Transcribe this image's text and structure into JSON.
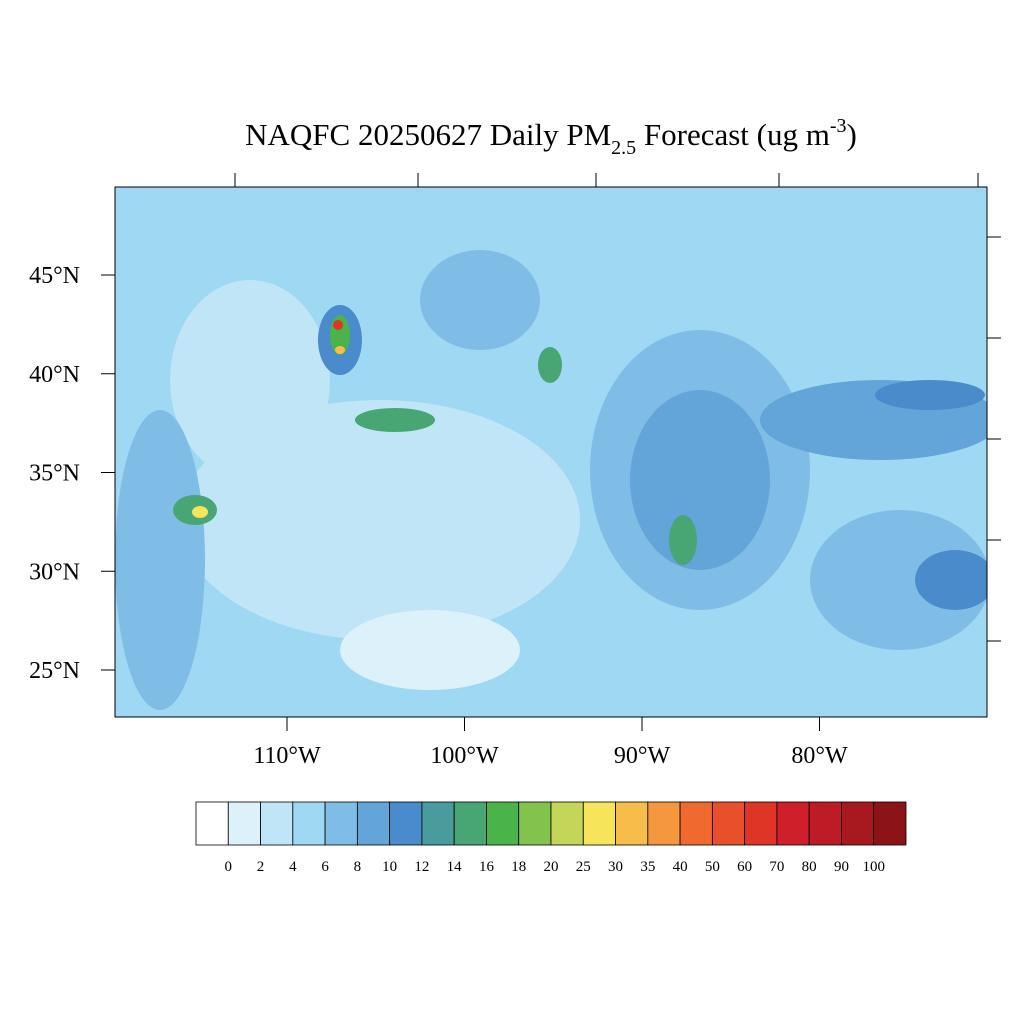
{
  "title": {
    "main": "NAQFC 20250627 Daily PM",
    "subscript": "2.5",
    "rest": " Forecast (ug m",
    "superscript": "-3",
    "end": ")"
  },
  "map": {
    "lat_ticks": [
      {
        "value": 45,
        "label": "45°N"
      },
      {
        "value": 40,
        "label": "40°N"
      },
      {
        "value": 35,
        "label": "35°N"
      },
      {
        "value": 30,
        "label": "30°N"
      },
      {
        "value": 25,
        "label": "25°N"
      }
    ],
    "lon_ticks": [
      {
        "value": 110,
        "label": "110°W"
      },
      {
        "value": 100,
        "label": "100°W"
      },
      {
        "value": 90,
        "label": "90°W"
      },
      {
        "value": 80,
        "label": "80°W"
      }
    ]
  },
  "colorbar": {
    "levels": [
      0,
      2,
      4,
      6,
      8,
      10,
      12,
      14,
      16,
      18,
      20,
      25,
      30,
      35,
      40,
      50,
      60,
      70,
      80,
      90,
      100
    ],
    "colors": [
      "#ffffff",
      "#ddf1fb",
      "#bfe5f7",
      "#9fd8f3",
      "#80bde6",
      "#63a5d9",
      "#4a8bcb",
      "#4a9b9b",
      "#48a574",
      "#4ab34a",
      "#82c34e",
      "#c3d65a",
      "#f6e45a",
      "#f7bd4a",
      "#f5973e",
      "#f06a30",
      "#e8502b",
      "#de3527",
      "#cf1f2a",
      "#bd1b26",
      "#a8191f",
      "#8c1418"
    ]
  }
}
